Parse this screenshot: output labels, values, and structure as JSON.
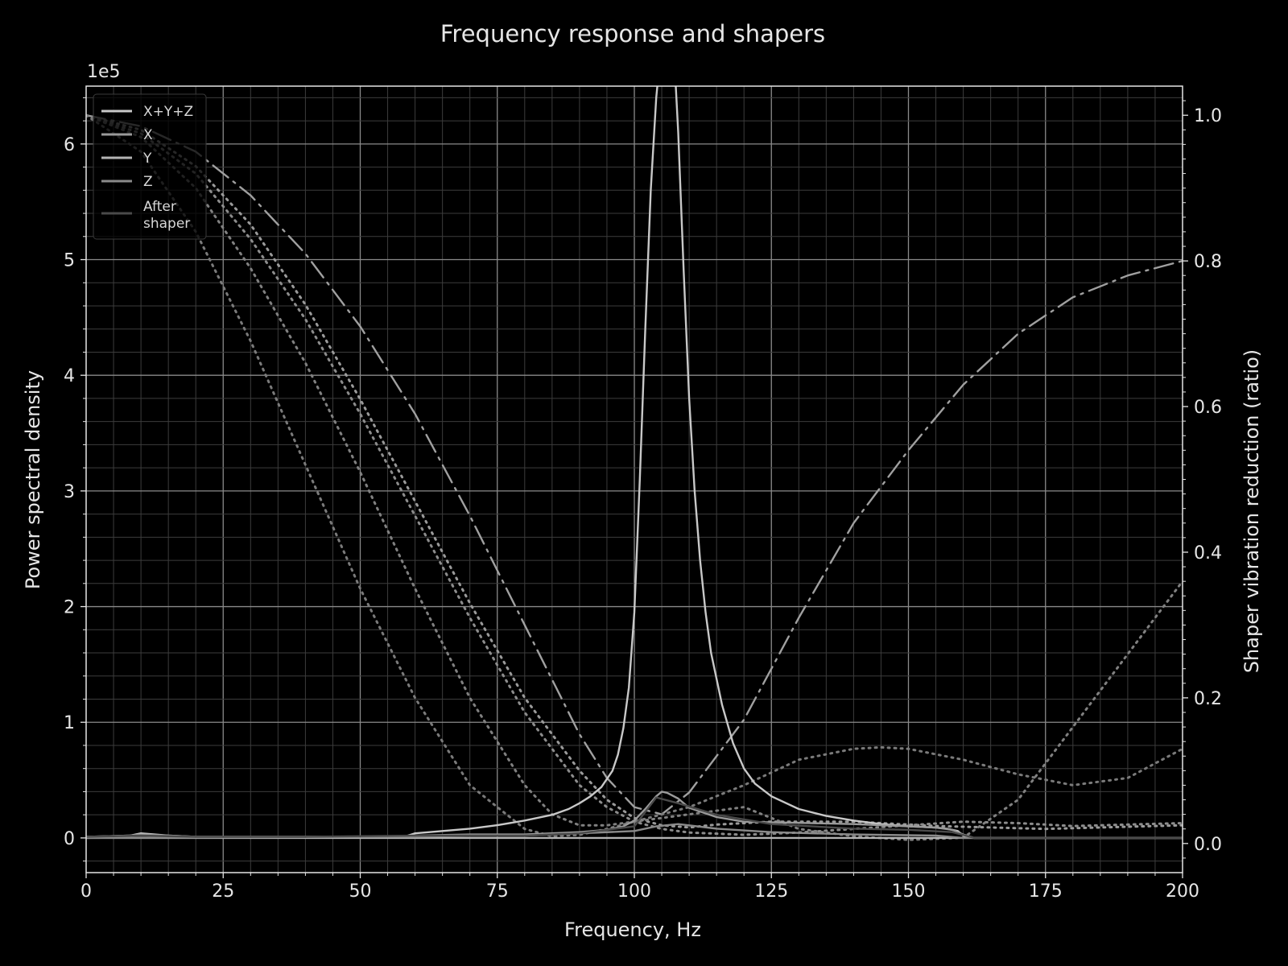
{
  "chart_data": {
    "type": "line",
    "title": "Frequency response and shapers",
    "xlabel": "Frequency, Hz",
    "ylabel": "Power spectral density",
    "y2label": "Shaper vibration reduction (ratio)",
    "y_scale_label": "1e5",
    "xlim": [
      0,
      200
    ],
    "ylim": [
      -0.3,
      6.5
    ],
    "y2lim": [
      -0.04,
      1.04
    ],
    "x_ticks": [
      "0",
      "25",
      "50",
      "75",
      "100",
      "125",
      "150",
      "175",
      "200"
    ],
    "y_ticks": [
      "0",
      "1",
      "2",
      "3",
      "4",
      "5",
      "6"
    ],
    "y2_ticks": [
      "0.0",
      "0.2",
      "0.4",
      "0.6",
      "0.8",
      "1.0"
    ],
    "grid": true,
    "legend_position": "top-left",
    "legend": [
      "X+Y+Z",
      "X",
      "Y",
      "Z",
      "After shaper"
    ],
    "series": [
      {
        "name": "X+Y+Z",
        "axis": "left",
        "color": "#c8c8c8",
        "style": "solid",
        "x": [
          0,
          8,
          10,
          15,
          20,
          30,
          40,
          50,
          58,
          60,
          65,
          70,
          75,
          80,
          85,
          88,
          90,
          92,
          94,
          96,
          97,
          98,
          99,
          100,
          101,
          102,
          103,
          104,
          105,
          106,
          107,
          108,
          109,
          110,
          111,
          112,
          113,
          114,
          116,
          118,
          120,
          122,
          125,
          130,
          135,
          140,
          145,
          150,
          155,
          157,
          159,
          160,
          162,
          170,
          180,
          190,
          200
        ],
        "y": [
          0.01,
          0.02,
          0.04,
          0.02,
          0.01,
          0.01,
          0.01,
          0.01,
          0.01,
          0.04,
          0.06,
          0.08,
          0.11,
          0.15,
          0.2,
          0.25,
          0.3,
          0.36,
          0.44,
          0.58,
          0.72,
          0.95,
          1.3,
          1.95,
          3.1,
          4.4,
          5.6,
          6.4,
          6.9,
          7.2,
          7.0,
          6.1,
          4.9,
          3.8,
          3.0,
          2.4,
          1.95,
          1.6,
          1.15,
          0.82,
          0.6,
          0.47,
          0.36,
          0.25,
          0.19,
          0.15,
          0.12,
          0.1,
          0.09,
          0.08,
          0.06,
          0.02,
          0.0,
          0.0,
          0.0,
          0.0,
          0.0
        ]
      },
      {
        "name": "X",
        "axis": "left",
        "color": "#9a9a9a",
        "style": "solid",
        "x": [
          0,
          8,
          10,
          15,
          20,
          40,
          58,
          60,
          70,
          80,
          90,
          95,
          98,
          100,
          102,
          104,
          105,
          106,
          108,
          110,
          115,
          120,
          130,
          140,
          150,
          155,
          158,
          160,
          162,
          200
        ],
        "y": [
          0.01,
          0.02,
          0.03,
          0.02,
          0.01,
          0.01,
          0.01,
          0.02,
          0.03,
          0.03,
          0.05,
          0.07,
          0.1,
          0.15,
          0.25,
          0.36,
          0.4,
          0.39,
          0.34,
          0.26,
          0.18,
          0.14,
          0.13,
          0.12,
          0.1,
          0.09,
          0.07,
          0.03,
          0.0,
          0.0
        ]
      },
      {
        "name": "Y",
        "axis": "left",
        "color": "#b4b4b4",
        "style": "solid",
        "x": [
          0,
          50,
          100,
          150,
          200
        ],
        "y": [
          0.0,
          0.0,
          0.0,
          0.0,
          0.0
        ]
      },
      {
        "name": "Z",
        "axis": "left",
        "color": "#8a8a8a",
        "style": "solid",
        "x": [
          0,
          60,
          70,
          80,
          90,
          100,
          104,
          108,
          115,
          125,
          140,
          155,
          160,
          200
        ],
        "y": [
          0.0,
          0.01,
          0.02,
          0.02,
          0.04,
          0.06,
          0.1,
          0.12,
          0.08,
          0.05,
          0.03,
          0.02,
          0.0,
          0.0
        ]
      },
      {
        "name": "After shaper",
        "axis": "left",
        "color": "#4a4a4a",
        "style": "solid",
        "x": [
          0,
          10,
          20,
          40,
          60,
          80,
          90,
          100,
          104,
          108,
          115,
          125,
          140,
          150,
          158,
          162,
          200
        ],
        "y": [
          0.01,
          0.02,
          0.01,
          0.01,
          0.02,
          0.02,
          0.04,
          0.1,
          0.35,
          0.3,
          0.2,
          0.12,
          0.08,
          0.07,
          0.05,
          0.0,
          0.0
        ]
      },
      {
        "name": "",
        "axis": "right",
        "color": "#a0a0a0",
        "style": "dashdot",
        "x": [
          0,
          10,
          20,
          30,
          40,
          50,
          60,
          70,
          80,
          90,
          95,
          100,
          105,
          110,
          120,
          130,
          140,
          150,
          160,
          170,
          180,
          190,
          200
        ],
        "y": [
          1.0,
          0.985,
          0.95,
          0.89,
          0.81,
          0.71,
          0.59,
          0.45,
          0.3,
          0.15,
          0.09,
          0.05,
          0.04,
          0.07,
          0.17,
          0.31,
          0.44,
          0.54,
          0.63,
          0.7,
          0.75,
          0.78,
          0.8
        ]
      },
      {
        "name": "",
        "axis": "right",
        "color": "#9a9a9a",
        "style": "dotted",
        "x": [
          0,
          10,
          20,
          30,
          40,
          50,
          60,
          70,
          80,
          90,
          95,
          100,
          105,
          110,
          115,
          125,
          140,
          155,
          165,
          175,
          185,
          200
        ],
        "y": [
          1.0,
          0.98,
          0.93,
          0.85,
          0.74,
          0.61,
          0.47,
          0.33,
          0.2,
          0.1,
          0.06,
          0.035,
          0.025,
          0.022,
          0.026,
          0.03,
          0.03,
          0.024,
          0.022,
          0.02,
          0.022,
          0.025
        ]
      },
      {
        "name": "",
        "axis": "right",
        "color": "#8c8c8c",
        "style": "dotted",
        "x": [
          0,
          10,
          20,
          30,
          40,
          50,
          60,
          70,
          80,
          90,
          95,
          100,
          105,
          110,
          120,
          130,
          140,
          150,
          160,
          170,
          180,
          200
        ],
        "y": [
          1.0,
          0.975,
          0.92,
          0.83,
          0.72,
          0.59,
          0.45,
          0.31,
          0.18,
          0.08,
          0.05,
          0.03,
          0.02,
          0.015,
          0.012,
          0.015,
          0.02,
          0.025,
          0.03,
          0.028,
          0.024,
          0.028
        ]
      },
      {
        "name": "",
        "axis": "right",
        "color": "#808080",
        "style": "dotted",
        "x": [
          0,
          10,
          20,
          30,
          40,
          50,
          60,
          70,
          80,
          85,
          90,
          95,
          100,
          110,
          120,
          125,
          130,
          140,
          150,
          160,
          170,
          180,
          190,
          200
        ],
        "y": [
          1.0,
          0.97,
          0.9,
          0.79,
          0.66,
          0.51,
          0.35,
          0.2,
          0.08,
          0.04,
          0.025,
          0.025,
          0.03,
          0.04,
          0.05,
          0.035,
          0.02,
          0.01,
          0.005,
          0.008,
          0.06,
          0.16,
          0.26,
          0.36
        ]
      },
      {
        "name": "",
        "axis": "right",
        "color": "#7a7a7a",
        "style": "dotted",
        "x": [
          0,
          10,
          20,
          30,
          40,
          50,
          60,
          70,
          80,
          85,
          90,
          95,
          100,
          110,
          120,
          130,
          140,
          145,
          150,
          160,
          170,
          180,
          190,
          200
        ],
        "y": [
          1.0,
          0.95,
          0.84,
          0.69,
          0.52,
          0.35,
          0.2,
          0.08,
          0.02,
          0.01,
          0.012,
          0.02,
          0.03,
          0.05,
          0.08,
          0.115,
          0.13,
          0.132,
          0.13,
          0.115,
          0.095,
          0.08,
          0.09,
          0.13
        ]
      }
    ]
  }
}
